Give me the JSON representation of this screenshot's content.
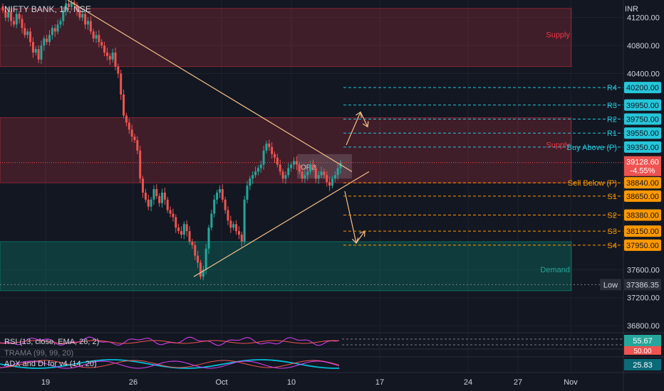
{
  "header": {
    "symbol_title": "NIFTY BANK, 1h, NSE",
    "currency": "INR"
  },
  "indicators": {
    "rsi_label": "RSI (13, close, EMA, 26, 2)",
    "rsi_value": "55.67",
    "trama_label": "TRAMA (99, 99, 20)",
    "trama_value": "50.00",
    "adx_label": "ADX and DI for v4 (14, 20)",
    "adx_value": "25.83"
  },
  "chart_data": {
    "type": "candlestick",
    "y_axis": {
      "ticks": [
        "41200.00",
        "40800.00",
        "40400.00",
        "37600.00",
        "37200.00",
        "36800.00"
      ],
      "tick_values": [
        41200,
        40800,
        40400,
        37600,
        37200,
        36800
      ],
      "range": [
        36700,
        41450
      ]
    },
    "x_axis": {
      "labels": [
        "19",
        "26",
        "Oct",
        "10",
        "17",
        "24",
        "27",
        "Nov"
      ]
    },
    "zones": [
      {
        "label": "Supply",
        "low": 40500,
        "high": 41330,
        "color": "#f23645"
      },
      {
        "label": "Supply",
        "low": 38840,
        "high": 39770,
        "color": "#f23645"
      },
      {
        "label": "Demand",
        "low": 37300,
        "high": 38000,
        "color": "#089981"
      }
    ],
    "levels": [
      {
        "label": "R4",
        "value": 40200,
        "price": "40200.00",
        "kind": "resistance"
      },
      {
        "label": "R3",
        "value": 39950,
        "price": "39950.00",
        "kind": "resistance"
      },
      {
        "label": "R2",
        "value": 39750,
        "price": "39750.00",
        "kind": "resistance"
      },
      {
        "label": "R1",
        "value": 39550,
        "price": "39550.00",
        "kind": "resistance"
      },
      {
        "label": "Buy Above (P)",
        "value": 39350,
        "price": "39350.00",
        "kind": "resistance"
      },
      {
        "label": "Sell Below (P)",
        "value": 38840,
        "price": "38840.00",
        "kind": "support"
      },
      {
        "label": "S1",
        "value": 38650,
        "price": "38650.00",
        "kind": "support"
      },
      {
        "label": "S2",
        "value": 38380,
        "price": "38380.00",
        "kind": "support"
      },
      {
        "label": "S3",
        "value": 38150,
        "price": "38150.00",
        "kind": "support"
      },
      {
        "label": "S4",
        "value": 37950,
        "price": "37950.00",
        "kind": "support"
      }
    ],
    "current_price": {
      "price": "39128.60",
      "change": "-4.55%",
      "value": 39128.6
    },
    "low_marker": {
      "label": "Low",
      "price": "37386.35",
      "value": 37386.35
    },
    "orb_label": "ORB",
    "closes": [
      41300,
      41200,
      41280,
      41150,
      41100,
      41250,
      41180,
      41050,
      40950,
      41000,
      40850,
      40700,
      40750,
      40600,
      40800,
      40900,
      40850,
      40950,
      41050,
      41000,
      41100,
      41150,
      41300,
      41400,
      41350,
      41420,
      41380,
      41300,
      41200,
      41250,
      41100,
      41150,
      41000,
      40900,
      40950,
      40850,
      40800,
      40700,
      40650,
      40600,
      40700,
      40500,
      40400,
      40100,
      39800,
      39700,
      39600,
      39500,
      39450,
      39300,
      38900,
      38700,
      38600,
      38500,
      38600,
      38750,
      38650,
      38550,
      38700,
      38600,
      38450,
      38400,
      38350,
      38200,
      38150,
      38100,
      38250,
      38150,
      38000,
      37950,
      37800,
      37700,
      37500,
      37600,
      37900,
      38200,
      38400,
      38600,
      38700,
      38750,
      38600,
      38450,
      38300,
      38200,
      38250,
      38150,
      38100,
      38000,
      38600,
      38800,
      38900,
      38950,
      39000,
      39050,
      39100,
      39300,
      39400,
      39350,
      39250,
      39200,
      39100,
      39000,
      38900,
      38950,
      39050,
      39100,
      39150,
      39100,
      39000,
      38900,
      38950,
      39000,
      39100,
      39050,
      38900,
      38950,
      39000,
      38950,
      38850,
      38800,
      38900,
      38950,
      39050,
      39128
    ]
  }
}
